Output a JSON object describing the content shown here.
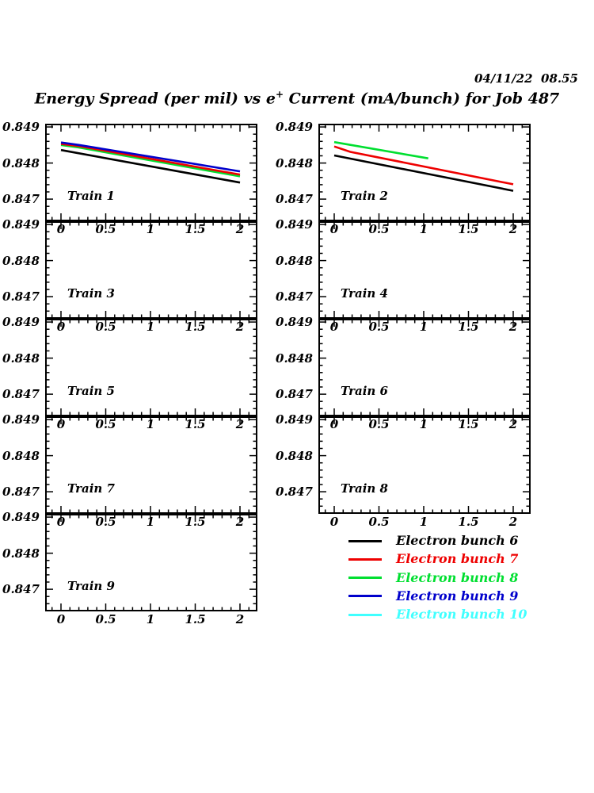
{
  "header": {
    "date": "04/11/22",
    "time": "08.55"
  },
  "title": {
    "prefix": "Energy Spread (per mil) vs e",
    "sup": "+",
    "suffix": " Current (mA/bunch) for Job 487"
  },
  "colors": {
    "black": "#000000",
    "red": "#EE0000",
    "green": "#00DF30",
    "blue": "#0000CC",
    "cyan": "#40FFFF"
  },
  "chart_data": {
    "type": "line",
    "title": "Energy Spread (per mil) vs e+ Current (mA/bunch) for Job 487",
    "grid": false,
    "x_tick_labels": [
      "0",
      "0.5",
      "1",
      "1.5",
      "2"
    ],
    "x_tick_values": [
      0,
      0.5,
      1,
      1.5,
      2
    ],
    "y_tick_labels": [
      "0.849",
      "0.848",
      "0.847"
    ],
    "y_tick_values": [
      0.849,
      0.848,
      0.847
    ],
    "x_minor_step": 0.1,
    "y_minor_step": 0.0002,
    "xlim": [
      -0.18,
      2.2
    ],
    "ylim": [
      0.8464,
      0.8491
    ],
    "legend_position": "bottom-right",
    "panels": [
      {
        "train": 1,
        "label": "Train 1",
        "series": [
          {
            "name": "Electron bunch 6",
            "color": "black",
            "points": [
              [
                0,
                0.84836
              ],
              [
                2,
                0.84746
              ]
            ]
          },
          {
            "name": "Electron bunch 8",
            "color": "green",
            "points": [
              [
                0,
                0.8485
              ],
              [
                0.2,
                0.84843
              ],
              [
                2,
                0.84763
              ]
            ]
          },
          {
            "name": "Electron bunch 7",
            "color": "red",
            "points": [
              [
                0,
                0.84853
              ],
              [
                0.2,
                0.84847
              ],
              [
                2,
                0.84768
              ]
            ]
          },
          {
            "name": "Electron bunch 9",
            "color": "blue",
            "points": [
              [
                0,
                0.84857
              ],
              [
                0.2,
                0.8485
              ],
              [
                2,
                0.84777
              ]
            ]
          }
        ]
      },
      {
        "train": 2,
        "label": "Train 2",
        "series": [
          {
            "name": "Electron bunch 6",
            "color": "black",
            "points": [
              [
                0,
                0.84821
              ],
              [
                2,
                0.84723
              ]
            ]
          },
          {
            "name": "Electron bunch 7",
            "color": "red",
            "points": [
              [
                0,
                0.84846
              ],
              [
                0.18,
                0.84831
              ],
              [
                2,
                0.84741
              ]
            ]
          },
          {
            "name": "Electron bunch 8",
            "color": "green",
            "points": [
              [
                0,
                0.84858
              ],
              [
                1.05,
                0.84813
              ]
            ]
          }
        ]
      },
      {
        "train": 3,
        "label": "Train 3",
        "series": []
      },
      {
        "train": 4,
        "label": "Train 4",
        "series": []
      },
      {
        "train": 5,
        "label": "Train 5",
        "series": []
      },
      {
        "train": 6,
        "label": "Train 6",
        "series": []
      },
      {
        "train": 7,
        "label": "Train 7",
        "series": []
      },
      {
        "train": 8,
        "label": "Train 8",
        "series": []
      },
      {
        "train": 9,
        "label": "Train 9",
        "series": []
      }
    ],
    "legend": [
      {
        "label": "Electron bunch 6",
        "color": "black"
      },
      {
        "label": "Electron bunch 7",
        "color": "red"
      },
      {
        "label": "Electron bunch 8",
        "color": "green"
      },
      {
        "label": "Electron bunch 9",
        "color": "blue"
      },
      {
        "label": "Electron bunch 10",
        "color": "cyan"
      }
    ]
  }
}
